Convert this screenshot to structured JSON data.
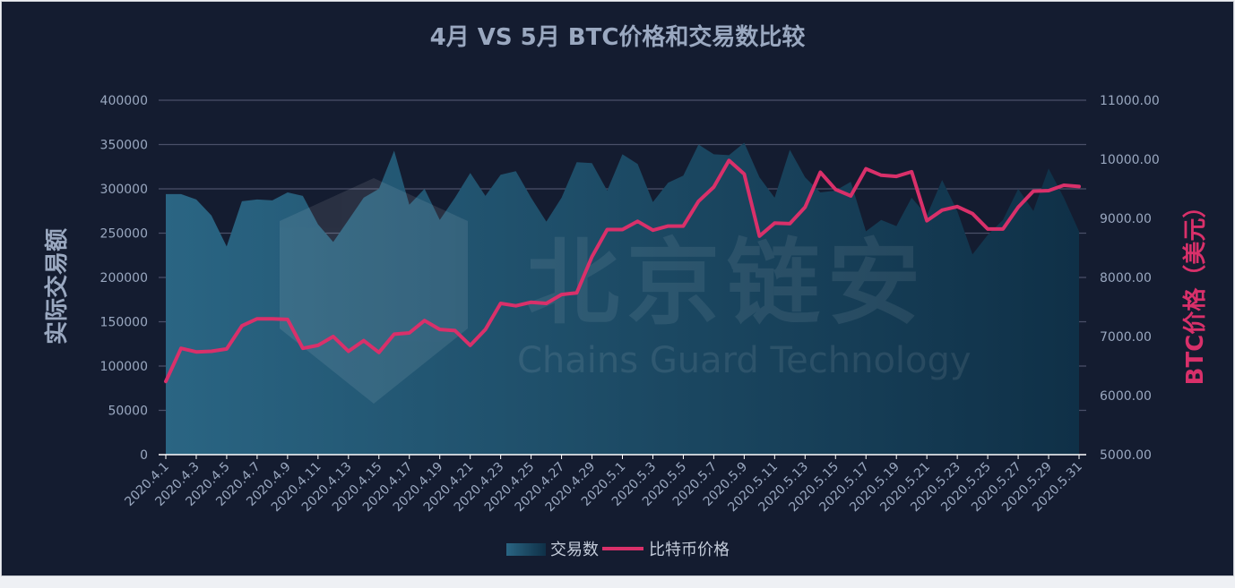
{
  "colors": {
    "background": "#141c30",
    "area_top": "#2a6583",
    "area_bottom": "#0f3047",
    "price_line": "#d9306a",
    "grid": "#4a5068",
    "text": "#9aa8c0",
    "right_axis_label": "#d9306a"
  },
  "watermark": {
    "cn": "北京链安",
    "en": "Chains Guard Technology",
    "logo_icon": "shield-hexagon-network-logo"
  },
  "legend": {
    "position": "bottom-center",
    "items": [
      {
        "label": "交易数",
        "icon": "area-swatch"
      },
      {
        "label": "比特币价格",
        "icon": "line-swatch"
      }
    ]
  },
  "chart_data": {
    "type": "area+line",
    "title": "4月 VS 5月 BTC价格和交易数比较",
    "ylabel_left": "实际交易额",
    "ylabel_right": "BTC价格（美元）",
    "y_left_ticks": [
      "0",
      "50000",
      "100000",
      "150000",
      "200000",
      "250000",
      "300000",
      "350000",
      "400000"
    ],
    "y_right_ticks": [
      "5000.00",
      "6000.00",
      "7000.00",
      "8000.00",
      "9000.00",
      "10000.00",
      "11000.00"
    ],
    "ylim_left": [
      0,
      400000
    ],
    "ylim_right": [
      5000,
      11000
    ],
    "grid": true,
    "x": [
      "2020.4.1",
      "2020.4.2",
      "2020.4.3",
      "2020.4.4",
      "2020.4.5",
      "2020.4.6",
      "2020.4.7",
      "2020.4.8",
      "2020.4.9",
      "2020.4.10",
      "2020.4.11",
      "2020.4.12",
      "2020.4.13",
      "2020.4.14",
      "2020.4.15",
      "2020.4.16",
      "2020.4.17",
      "2020.4.18",
      "2020.4.19",
      "2020.4.20",
      "2020.4.21",
      "2020.4.22",
      "2020.4.23",
      "2020.4.24",
      "2020.4.25",
      "2020.4.26",
      "2020.4.27",
      "2020.4.28",
      "2020.4.29",
      "2020.4.30",
      "2020.5.1",
      "2020.5.2",
      "2020.5.3",
      "2020.5.4",
      "2020.5.5",
      "2020.5.6",
      "2020.5.7",
      "2020.5.8",
      "2020.5.9",
      "2020.5.10",
      "2020.5.11",
      "2020.5.12",
      "2020.5.13",
      "2020.5.14",
      "2020.5.15",
      "2020.5.16",
      "2020.5.17",
      "2020.5.18",
      "2020.5.19",
      "2020.5.20",
      "2020.5.21",
      "2020.5.22",
      "2020.5.23",
      "2020.5.24",
      "2020.5.25",
      "2020.5.26",
      "2020.5.27",
      "2020.5.28",
      "2020.5.29",
      "2020.5.30",
      "2020.5.31"
    ],
    "x_tick_labels": [
      "2020.4.1",
      "2020.4.3",
      "2020.4.5",
      "2020.4.7",
      "2020.4.9",
      "2020.4.11",
      "2020.4.13",
      "2020.4.15",
      "2020.4.17",
      "2020.4.19",
      "2020.4.21",
      "2020.4.23",
      "2020.4.25",
      "2020.4.27",
      "2020.4.29",
      "2020.5.1",
      "2020.5.3",
      "2020.5.5",
      "2020.5.7",
      "2020.5.9",
      "2020.5.11",
      "2020.5.13",
      "2020.5.15",
      "2020.5.17",
      "2020.5.19",
      "2020.5.21",
      "2020.5.23",
      "2020.5.25",
      "2020.5.27",
      "2020.5.29",
      "2020.5.31"
    ],
    "series": [
      {
        "name": "交易数",
        "type": "area",
        "axis": "left",
        "values": [
          294000,
          294000,
          288000,
          270000,
          235000,
          286000,
          288000,
          287000,
          296000,
          292000,
          260000,
          240000,
          265000,
          290000,
          300000,
          343000,
          282000,
          300000,
          265000,
          290000,
          318000,
          292000,
          316000,
          320000,
          290000,
          263000,
          290000,
          330000,
          329000,
          298000,
          339000,
          328000,
          285000,
          307000,
          315000,
          350000,
          339000,
          338000,
          352000,
          313000,
          290000,
          344000,
          313000,
          296000,
          298000,
          308000,
          252000,
          265000,
          258000,
          290000,
          270000,
          310000,
          275000,
          226000,
          248000,
          265000,
          300000,
          275000,
          323000,
          290000,
          252000
        ]
      },
      {
        "name": "比特币价格",
        "type": "line",
        "axis": "right",
        "values": [
          6240,
          6800,
          6740,
          6750,
          6790,
          7180,
          7300,
          7300,
          7290,
          6800,
          6850,
          7000,
          6750,
          6930,
          6730,
          7040,
          7060,
          7270,
          7120,
          7100,
          6850,
          7120,
          7560,
          7520,
          7580,
          7560,
          7710,
          7740,
          8350,
          8810,
          8810,
          8950,
          8800,
          8870,
          8870,
          9290,
          9530,
          9980,
          9750,
          8700,
          8920,
          8910,
          9190,
          9780,
          9490,
          9380,
          9840,
          9730,
          9710,
          9790,
          8960,
          9140,
          9200,
          9080,
          8820,
          8820,
          9190,
          9460,
          9470,
          9560,
          9540
        ]
      }
    ]
  }
}
